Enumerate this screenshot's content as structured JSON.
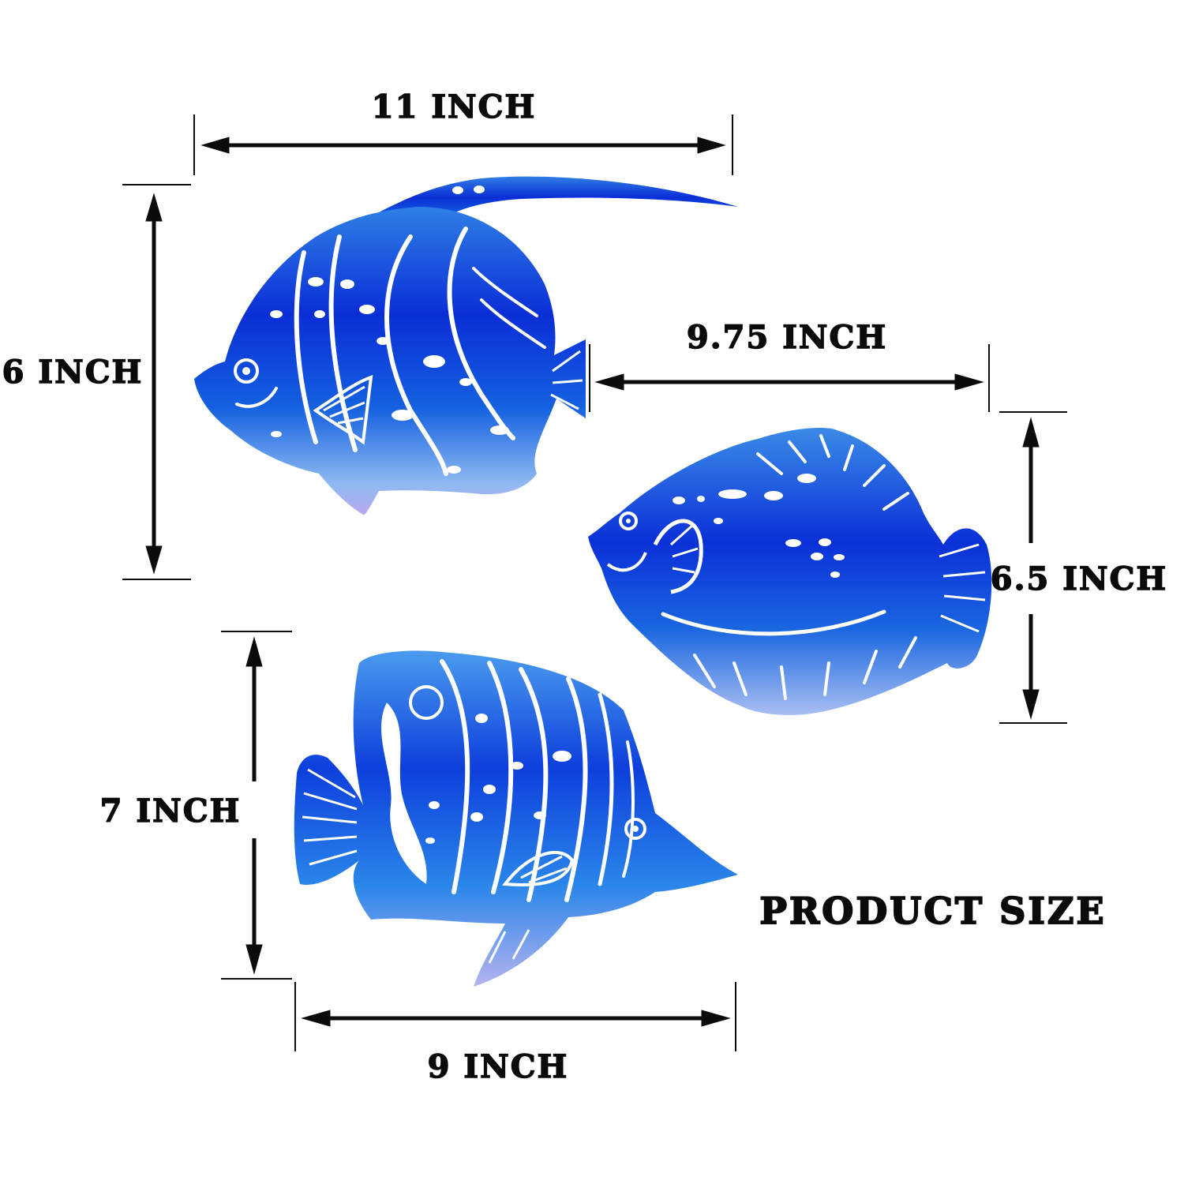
{
  "title": "PRODUCT SIZE",
  "colors": {
    "fish_dark": "#0a2ed6",
    "fish_mid": "#1f6fe0",
    "fish_light": "#a9c7f5",
    "ink": "#0b0b0b"
  },
  "fish": [
    {
      "name": "moorish-idol",
      "width_label": "11 INCH",
      "height_label": "6 INCH"
    },
    {
      "name": "round-reef-fish",
      "width_label": "9.75 INCH",
      "height_label": "6.5 INCH"
    },
    {
      "name": "butterflyfish",
      "width_label": "9 INCH",
      "height_label": "7 INCH"
    }
  ]
}
